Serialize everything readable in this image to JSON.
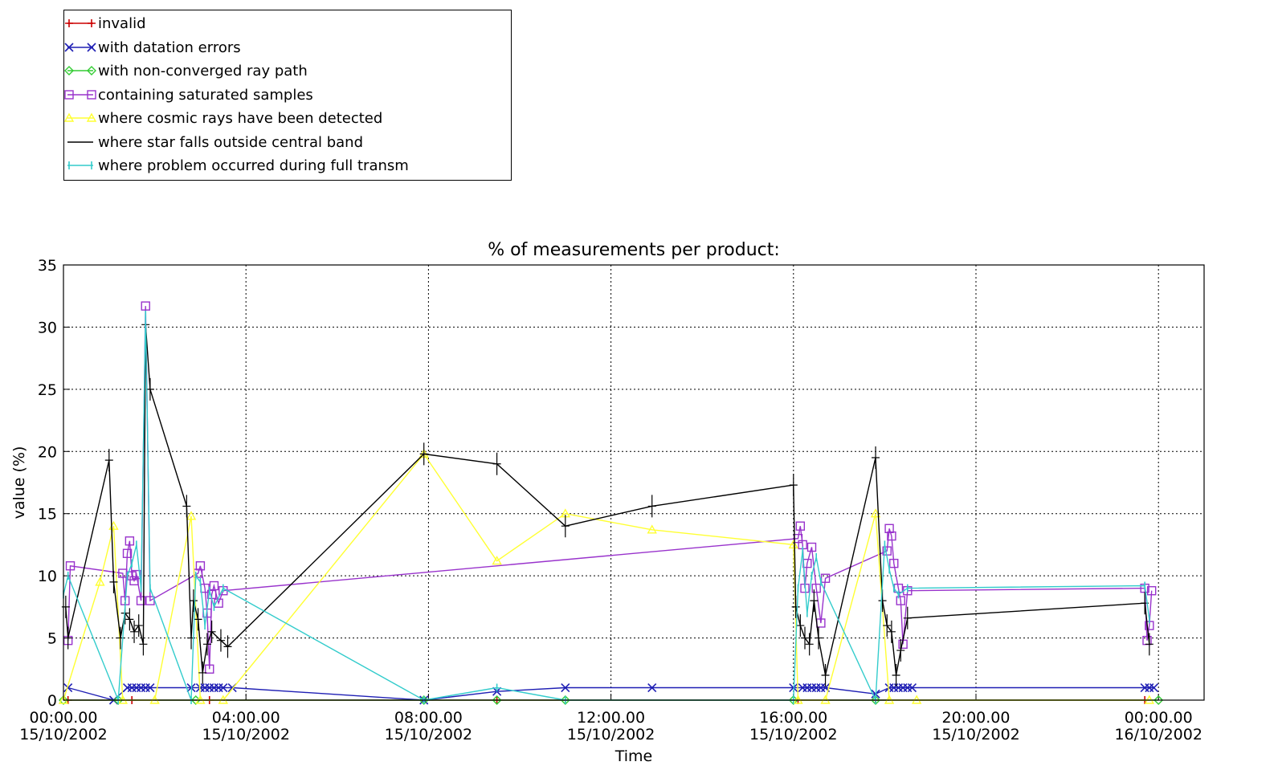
{
  "legend": {
    "position": "top-left",
    "items": [
      {
        "label": "invalid",
        "color": "#cc0000",
        "marker": "plus"
      },
      {
        "label": "with datation errors",
        "color": "#1f1fb4",
        "marker": "x"
      },
      {
        "label": "with non-converged ray path",
        "color": "#33cc33",
        "marker": "diamond"
      },
      {
        "label": "containing saturated samples",
        "color": "#9933cc",
        "marker": "square"
      },
      {
        "label": "where cosmic rays have been detected",
        "color": "#ffff33",
        "marker": "triangle"
      },
      {
        "label": "where star falls outside central band",
        "color": "#000000",
        "marker": "none"
      },
      {
        "label": "where problem occurred during full transm",
        "color": "#33cccc",
        "marker": "vbar"
      }
    ]
  },
  "chart_data": {
    "type": "line",
    "title": "% of measurements per product:",
    "xlabel": "Time",
    "ylabel": "value (%)",
    "xlim": [
      "15/10/2002 00:00",
      "16/10/2002 01:00"
    ],
    "ylim": [
      0,
      35
    ],
    "grid": true,
    "yticks": [
      "0",
      "5",
      "10",
      "15",
      "20",
      "25",
      "30",
      "35"
    ],
    "xticks": [
      {
        "time": "00:00.00",
        "date": "15/10/2002",
        "hour": 0
      },
      {
        "time": "04:00.00",
        "date": "15/10/2002",
        "hour": 4
      },
      {
        "time": "08:00.00",
        "date": "15/10/2002",
        "hour": 8
      },
      {
        "time": "12:00.00",
        "date": "15/10/2002",
        "hour": 12
      },
      {
        "time": "16:00.00",
        "date": "15/10/2002",
        "hour": 16
      },
      {
        "time": "20:00.00",
        "date": "15/10/2002",
        "hour": 20
      },
      {
        "time": "00:00.00",
        "date": "16/10/2002",
        "hour": 24
      }
    ],
    "series": [
      {
        "name": "invalid",
        "color": "#cc0000",
        "marker": "plus",
        "x": [
          0.1,
          1.5,
          3.2,
          7.9,
          9.5,
          11.0,
          16.1,
          17.8,
          23.7
        ],
        "y": [
          0,
          0,
          0,
          0,
          0,
          0,
          0,
          0,
          0
        ]
      },
      {
        "name": "with datation errors",
        "color": "#1f1fb4",
        "marker": "x",
        "x": [
          0.1,
          1.1,
          1.4,
          1.5,
          1.6,
          1.7,
          1.8,
          1.9,
          2.8,
          3.0,
          3.1,
          3.2,
          3.3,
          3.4,
          3.5,
          3.7,
          7.9,
          9.5,
          11.0,
          12.9,
          16.0,
          16.2,
          16.3,
          16.4,
          16.5,
          16.6,
          16.7,
          17.8,
          18.1,
          18.2,
          18.3,
          18.4,
          18.5,
          18.6,
          23.7,
          23.8,
          23.9
        ],
        "y": [
          1.0,
          0,
          1.0,
          1.0,
          1.0,
          1.0,
          1.0,
          1.0,
          1.0,
          1.0,
          1.0,
          1.0,
          1.0,
          1.0,
          1.0,
          1.0,
          0,
          0.7,
          1.0,
          1.0,
          1.0,
          1.0,
          1.0,
          1.0,
          1.0,
          1.0,
          1.0,
          0.5,
          1.0,
          1.0,
          1.0,
          1.0,
          1.0,
          1.0,
          1.0,
          1.0,
          1.0
        ]
      },
      {
        "name": "with non-converged ray path",
        "color": "#33cc33",
        "marker": "diamond",
        "x": [
          0.0,
          1.2,
          2.9,
          7.9,
          9.5,
          11.0,
          16.0,
          17.8,
          24.0
        ],
        "y": [
          0,
          0,
          0,
          0,
          0,
          0,
          0,
          0,
          0
        ]
      },
      {
        "name": "containing saturated samples",
        "color": "#9933cc",
        "marker": "square",
        "x": [
          0.1,
          0.15,
          1.3,
          1.35,
          1.4,
          1.45,
          1.5,
          1.55,
          1.6,
          1.7,
          1.8,
          1.9,
          2.95,
          3.0,
          3.1,
          3.15,
          3.2,
          3.25,
          3.3,
          3.4,
          3.5,
          16.1,
          16.15,
          16.2,
          16.25,
          16.3,
          16.4,
          16.5,
          16.6,
          16.7,
          18.05,
          18.1,
          18.15,
          18.2,
          18.3,
          18.35,
          18.4,
          18.5,
          23.7,
          23.75,
          23.8,
          23.85
        ],
        "y": [
          4.8,
          10.8,
          10.2,
          8.0,
          11.8,
          12.8,
          10.0,
          9.6,
          10.1,
          8.0,
          31.7,
          8.0,
          10.2,
          10.8,
          9.0,
          7.0,
          2.5,
          8.5,
          9.2,
          7.8,
          8.8,
          13.0,
          14.0,
          12.5,
          9.0,
          11.0,
          12.3,
          9.0,
          6.2,
          9.8,
          12.0,
          13.8,
          13.2,
          11.0,
          9.0,
          8.0,
          4.5,
          8.8,
          9.0,
          4.8,
          6.0,
          8.8
        ]
      },
      {
        "name": "where cosmic rays have been detected",
        "color": "#ffff33",
        "marker": "triangle",
        "x": [
          0.0,
          0.8,
          1.1,
          1.3,
          2.0,
          2.8,
          3.0,
          3.5,
          7.9,
          9.5,
          11.0,
          12.9,
          16.0,
          16.1,
          16.7,
          17.8,
          18.1,
          18.7,
          23.8
        ],
        "y": [
          0,
          9.5,
          14.0,
          0,
          0,
          14.8,
          0,
          0,
          19.8,
          11.2,
          15.0,
          13.7,
          12.5,
          0,
          0,
          15.0,
          0,
          0,
          0
        ]
      },
      {
        "name": "where star falls outside central band",
        "color": "#000000",
        "marker": "none",
        "x": [
          0.05,
          0.1,
          1.0,
          1.1,
          1.25,
          1.35,
          1.45,
          1.55,
          1.65,
          1.75,
          1.8,
          1.9,
          2.7,
          2.8,
          2.85,
          2.95,
          3.05,
          3.15,
          3.25,
          3.45,
          3.6,
          7.9,
          9.5,
          11.0,
          12.9,
          16.0,
          16.05,
          16.15,
          16.25,
          16.35,
          16.45,
          16.55,
          16.7,
          17.8,
          17.95,
          18.05,
          18.15,
          18.25,
          18.35,
          18.5,
          23.7,
          23.8
        ],
        "y": [
          7.5,
          5.0,
          19.3,
          9.5,
          5.0,
          7.0,
          6.5,
          5.5,
          6.0,
          4.5,
          30.2,
          25.0,
          15.6,
          5.0,
          8.0,
          6.5,
          2.2,
          4.5,
          5.5,
          4.8,
          4.3,
          19.8,
          19.0,
          14.0,
          15.6,
          17.3,
          7.5,
          6.0,
          5.0,
          4.5,
          8.0,
          5.0,
          2.0,
          19.5,
          8.0,
          6.0,
          5.5,
          2.0,
          4.0,
          6.6,
          7.8,
          4.5
        ]
      },
      {
        "name": "where problem occurred during full transm",
        "color": "#33cccc",
        "marker": "vbar",
        "x": [
          0.0,
          0.1,
          1.2,
          1.4,
          1.5,
          1.6,
          1.7,
          1.8,
          1.9,
          2.8,
          2.9,
          3.0,
          3.1,
          3.2,
          3.3,
          3.5,
          7.9,
          9.5,
          11.0,
          16.0,
          16.1,
          16.2,
          16.3,
          16.4,
          16.5,
          16.6,
          17.8,
          18.0,
          18.1,
          18.2,
          18.3,
          18.5,
          23.7,
          23.8
        ],
        "y": [
          8.5,
          10.0,
          0,
          10.0,
          11.0,
          12.5,
          9.0,
          31.0,
          9.0,
          0,
          10.0,
          9.5,
          6.0,
          8.8,
          7.5,
          9.0,
          0,
          1.0,
          0,
          0,
          9.0,
          12.0,
          7.0,
          10.0,
          11.5,
          9.5,
          0,
          12.5,
          10.5,
          9.0,
          8.5,
          9.0,
          9.2,
          6.5
        ]
      }
    ]
  }
}
